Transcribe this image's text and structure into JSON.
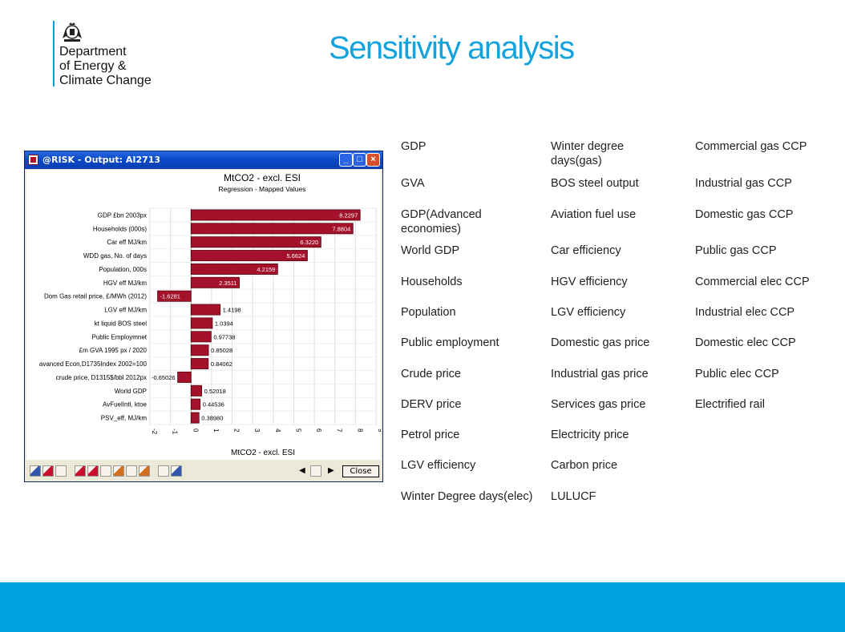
{
  "org": {
    "name_line1": "Department",
    "name_line2": "of Energy &",
    "name_line3": "Climate Change",
    "rule_color": "#00a0dc"
  },
  "slide_title": "Sensitivity analysis",
  "window": {
    "title": "@RISK - Output: AI2713",
    "close_label": "Close"
  },
  "chart_data": {
    "type": "bar",
    "orientation": "horizontal",
    "title": "MtCO2 - excl. ESI",
    "subtitle": "Regression - Mapped Values",
    "xlabel": "MtCO2 - excl. ESI",
    "xlim": [
      -2,
      9
    ],
    "xticks": [
      -2,
      -1,
      0,
      1,
      2,
      3,
      4,
      5,
      6,
      7,
      8,
      9
    ],
    "grid": true,
    "bar_color": "#a3112b",
    "categories": [
      "GDP £bn 2003px",
      "Households (000s)",
      "Car eff MJ/km",
      "WDD gas, No. of days",
      "Population, 000s",
      "HGV eff MJ/km",
      "Dom Gas retail price, £/MWh (2012)",
      "LGV eff MJ/km",
      "kt liquid BOS steel",
      "Public Employmnet",
      "£m GVA 1995 px / 2020",
      "avanced Econ,D1735Index 2002=100",
      "crude price, D1315$/bbl 2012px",
      "World GDP",
      "AvFuelIntl, ktoe",
      "PSV_eff, MJ/km"
    ],
    "values": [
      8.2297,
      7.8804,
      6.322,
      5.6624,
      4.2159,
      2.3511,
      -1.6281,
      1.4198,
      1.0394,
      0.97738,
      0.85028,
      0.84062,
      -0.65026,
      0.52018,
      0.44536,
      0.3898
    ],
    "value_labels": [
      "8.2297",
      "7.8804",
      "6.3220",
      "5.6624",
      "4.2159",
      "2.3511",
      "-1.6281",
      "1.4198",
      "1.0394",
      "0.97738",
      "0.85028",
      "0.84062",
      "-0.65026",
      "0.52018",
      "0.44536",
      "0.38980"
    ]
  },
  "variables": {
    "col1": [
      "GDP",
      "GVA",
      "GDP(Advanced\neconomies)",
      "World GDP",
      "Households",
      "Population",
      "Public employment",
      "Crude price",
      "DERV price",
      "Petrol price",
      "LGV efficiency",
      "Winter Degree days(elec)"
    ],
    "col2": [
      "Winter degree\ndays(gas)",
      "BOS steel output",
      "Aviation fuel use",
      "Car efficiency",
      "HGV efficiency",
      "LGV efficiency",
      "Domestic gas price",
      "Industrial gas price",
      "Services gas price",
      "Electricity price",
      "Carbon price",
      "LULUCF"
    ],
    "col3": [
      "Commercial gas CCP",
      "Industrial gas CCP",
      "Domestic gas CCP",
      "Public gas CCP",
      "Commercial elec CCP",
      "Industrial elec CCP",
      "Domestic elec CCP",
      "Public elec CCP",
      "Electrified rail"
    ]
  },
  "footer_color": "#00a3e0"
}
